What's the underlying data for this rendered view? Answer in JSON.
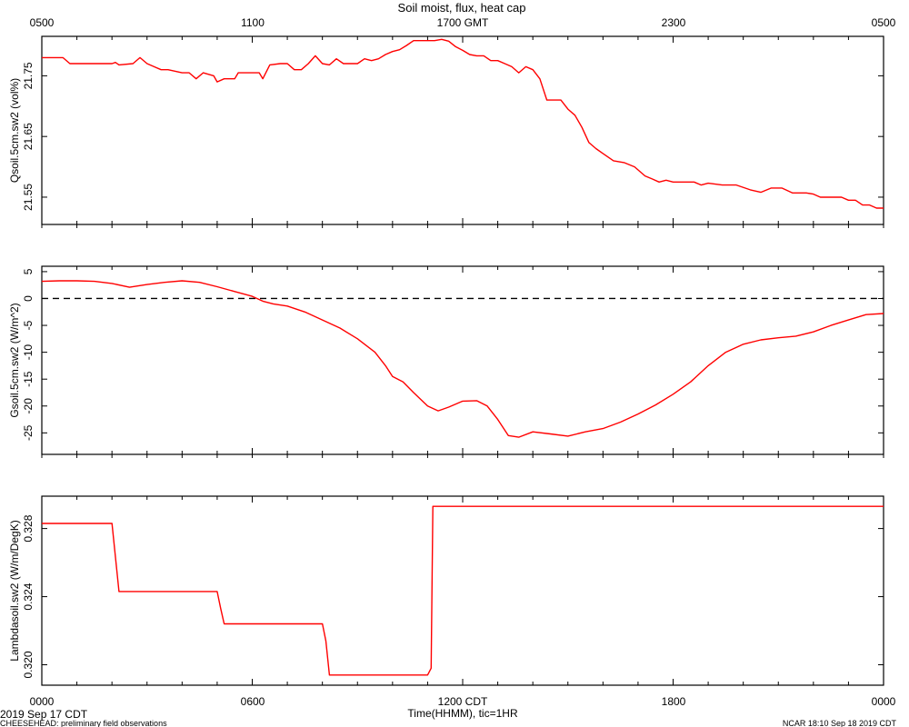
{
  "figure": {
    "title": "Soil moist, flux, heat cap",
    "gmt_ticks": [
      "0500",
      "1100",
      "1700 GMT",
      "2300",
      "0500"
    ],
    "cdt_ticks": [
      "0000",
      "0600",
      "1200 CDT",
      "1800",
      "0000"
    ],
    "xlabel": "Time(HHMM), tic=1HR",
    "date_label": "2019 Sep 17 CDT",
    "footer_left": "CHEESEHEAD: preliminary field observations",
    "footer_right": "NCAR 18:10 Sep 18 2019 CDT"
  },
  "colors": {
    "series": "#ff0000",
    "axis": "#000000",
    "zero_line": "#000000"
  },
  "chart_data": [
    {
      "type": "line",
      "ylabel": "Qsoil.5cm.sw2 (vol%)",
      "x_hours_range": [
        0,
        24
      ],
      "ylim": [
        21.505,
        21.815
      ],
      "yticks": [
        21.55,
        21.65,
        21.75
      ],
      "yticklabels": [
        "21.55",
        "21.65",
        "21.75"
      ],
      "series": [
        {
          "points": [
            [
              0,
              21.78
            ],
            [
              0.6,
              21.78
            ],
            [
              0.8,
              21.77
            ],
            [
              1,
              21.77
            ],
            [
              2,
              21.77
            ],
            [
              2.1,
              21.772
            ],
            [
              2.2,
              21.768
            ],
            [
              2.6,
              21.77
            ],
            [
              2.8,
              21.78
            ],
            [
              3,
              21.77
            ],
            [
              3.2,
              21.765
            ],
            [
              3.4,
              21.76
            ],
            [
              3.6,
              21.76
            ],
            [
              4,
              21.755
            ],
            [
              4.2,
              21.755
            ],
            [
              4.4,
              21.745
            ],
            [
              4.6,
              21.755
            ],
            [
              4.9,
              21.75
            ],
            [
              5,
              21.74
            ],
            [
              5.2,
              21.745
            ],
            [
              5.5,
              21.745
            ],
            [
              5.6,
              21.755
            ],
            [
              6,
              21.755
            ],
            [
              6.2,
              21.755
            ],
            [
              6.3,
              21.745
            ],
            [
              6.5,
              21.768
            ],
            [
              6.8,
              21.77
            ],
            [
              7,
              21.77
            ],
            [
              7.2,
              21.76
            ],
            [
              7.4,
              21.76
            ],
            [
              7.6,
              21.77
            ],
            [
              7.8,
              21.783
            ],
            [
              8,
              21.77
            ],
            [
              8.2,
              21.768
            ],
            [
              8.4,
              21.778
            ],
            [
              8.6,
              21.77
            ],
            [
              9,
              21.77
            ],
            [
              9.2,
              21.778
            ],
            [
              9.4,
              21.775
            ],
            [
              9.6,
              21.778
            ],
            [
              9.8,
              21.785
            ],
            [
              10,
              21.79
            ],
            [
              10.2,
              21.793
            ],
            [
              10.4,
              21.8
            ],
            [
              10.6,
              21.808
            ],
            [
              10.8,
              21.808
            ],
            [
              11.2,
              21.808
            ],
            [
              11.4,
              21.81
            ],
            [
              11.6,
              21.807
            ],
            [
              11.8,
              21.798
            ],
            [
              12,
              21.792
            ],
            [
              12.2,
              21.785
            ],
            [
              12.4,
              21.783
            ],
            [
              12.6,
              21.783
            ],
            [
              12.8,
              21.775
            ],
            [
              13,
              21.775
            ],
            [
              13.2,
              21.77
            ],
            [
              13.4,
              21.765
            ],
            [
              13.6,
              21.755
            ],
            [
              13.8,
              21.765
            ],
            [
              14,
              21.76
            ],
            [
              14.2,
              21.745
            ],
            [
              14.4,
              21.71
            ],
            [
              14.6,
              21.71
            ],
            [
              14.8,
              21.71
            ],
            [
              15,
              21.695
            ],
            [
              15.2,
              21.685
            ],
            [
              15.4,
              21.665
            ],
            [
              15.6,
              21.64
            ],
            [
              15.8,
              21.63
            ],
            [
              16,
              21.622
            ],
            [
              16.3,
              21.61
            ],
            [
              16.6,
              21.607
            ],
            [
              16.9,
              21.6
            ],
            [
              17.2,
              21.585
            ],
            [
              17.4,
              21.58
            ],
            [
              17.6,
              21.575
            ],
            [
              17.8,
              21.578
            ],
            [
              18,
              21.575
            ],
            [
              18.3,
              21.575
            ],
            [
              18.6,
              21.575
            ],
            [
              18.8,
              21.57
            ],
            [
              19,
              21.573
            ],
            [
              19.4,
              21.57
            ],
            [
              19.8,
              21.57
            ],
            [
              20.2,
              21.562
            ],
            [
              20.5,
              21.558
            ],
            [
              20.8,
              21.565
            ],
            [
              21.1,
              21.565
            ],
            [
              21.4,
              21.557
            ],
            [
              21.8,
              21.557
            ],
            [
              22,
              21.555
            ],
            [
              22.2,
              21.55
            ],
            [
              22.4,
              21.55
            ],
            [
              22.8,
              21.55
            ],
            [
              23,
              21.545
            ],
            [
              23.2,
              21.545
            ],
            [
              23.4,
              21.537
            ],
            [
              23.6,
              21.537
            ],
            [
              23.8,
              21.532
            ],
            [
              24,
              21.532
            ]
          ]
        }
      ]
    },
    {
      "type": "line",
      "ylabel": "Gsoil.5cm.sw2 (W/m^2)",
      "x_hours_range": [
        0,
        24
      ],
      "ylim": [
        -29,
        6
      ],
      "yticks": [
        5,
        0,
        -5,
        -10,
        -15,
        -20,
        -25
      ],
      "yticklabels": [
        "5",
        "0",
        "-5",
        "-10",
        "-15",
        "-20",
        "-25"
      ],
      "zero_line": true,
      "series": [
        {
          "points": [
            [
              0,
              3.2
            ],
            [
              0.5,
              3.3
            ],
            [
              1,
              3.3
            ],
            [
              1.5,
              3.2
            ],
            [
              2,
              2.8
            ],
            [
              2.5,
              2.1
            ],
            [
              3,
              2.6
            ],
            [
              3.5,
              3.0
            ],
            [
              4,
              3.3
            ],
            [
              4.5,
              3.0
            ],
            [
              5,
              2.2
            ],
            [
              5.5,
              1.3
            ],
            [
              6,
              0.4
            ],
            [
              6.3,
              -0.5
            ],
            [
              6.6,
              -1.0
            ],
            [
              7,
              -1.4
            ],
            [
              7.5,
              -2.5
            ],
            [
              8,
              -4.0
            ],
            [
              8.5,
              -5.5
            ],
            [
              9,
              -7.5
            ],
            [
              9.5,
              -10.0
            ],
            [
              9.8,
              -12.5
            ],
            [
              10,
              -14.5
            ],
            [
              10.3,
              -15.5
            ],
            [
              10.6,
              -17.5
            ],
            [
              11,
              -20.0
            ],
            [
              11.3,
              -20.9
            ],
            [
              11.6,
              -20.2
            ],
            [
              12,
              -19.1
            ],
            [
              12.4,
              -19.0
            ],
            [
              12.7,
              -20.0
            ],
            [
              13,
              -22.5
            ],
            [
              13.3,
              -25.5
            ],
            [
              13.6,
              -25.8
            ],
            [
              14,
              -24.8
            ],
            [
              14.5,
              -25.2
            ],
            [
              15,
              -25.6
            ],
            [
              15.5,
              -24.8
            ],
            [
              16,
              -24.2
            ],
            [
              16.5,
              -23.0
            ],
            [
              17,
              -21.5
            ],
            [
              17.5,
              -19.8
            ],
            [
              18,
              -17.8
            ],
            [
              18.5,
              -15.5
            ],
            [
              19,
              -12.5
            ],
            [
              19.5,
              -10.0
            ],
            [
              20,
              -8.5
            ],
            [
              20.5,
              -7.7
            ],
            [
              21,
              -7.3
            ],
            [
              21.5,
              -7.0
            ],
            [
              22,
              -6.2
            ],
            [
              22.5,
              -5.0
            ],
            [
              23,
              -4.0
            ],
            [
              23.5,
              -3.0
            ],
            [
              24,
              -2.8
            ]
          ]
        }
      ]
    },
    {
      "type": "line",
      "ylabel": "Lambdasoil.sw2 (W/m/DegK)",
      "x_hours_range": [
        0,
        24
      ],
      "ylim": [
        0.3188,
        0.3299
      ],
      "yticks": [
        0.32,
        0.324,
        0.328
      ],
      "yticklabels": [
        "0.320",
        "0.324",
        "0.328"
      ],
      "series": [
        {
          "points": [
            [
              0,
              0.3283
            ],
            [
              2.0,
              0.3283
            ],
            [
              2.2,
              0.3243
            ],
            [
              5.0,
              0.3243
            ],
            [
              5.1,
              0.3233
            ],
            [
              5.2,
              0.3224
            ],
            [
              8.0,
              0.3224
            ],
            [
              8.1,
              0.3214
            ],
            [
              8.2,
              0.3194
            ],
            [
              11.0,
              0.3194
            ],
            [
              11.1,
              0.3198
            ],
            [
              11.15,
              0.3293
            ],
            [
              24,
              0.3293
            ]
          ]
        }
      ]
    }
  ]
}
